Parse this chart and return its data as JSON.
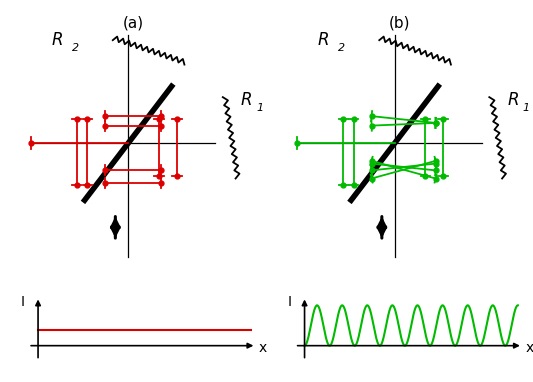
{
  "fig_width": 5.33,
  "fig_height": 3.82,
  "dpi": 100,
  "red": "#dd0000",
  "green": "#00bb00",
  "black": "#000000",
  "label_a": "(a)",
  "label_b": "(b)",
  "R1": "R",
  "R1_sub": "1",
  "R2": "R",
  "R2_sub": "2",
  "xlabel": "x",
  "ylabel": "I"
}
